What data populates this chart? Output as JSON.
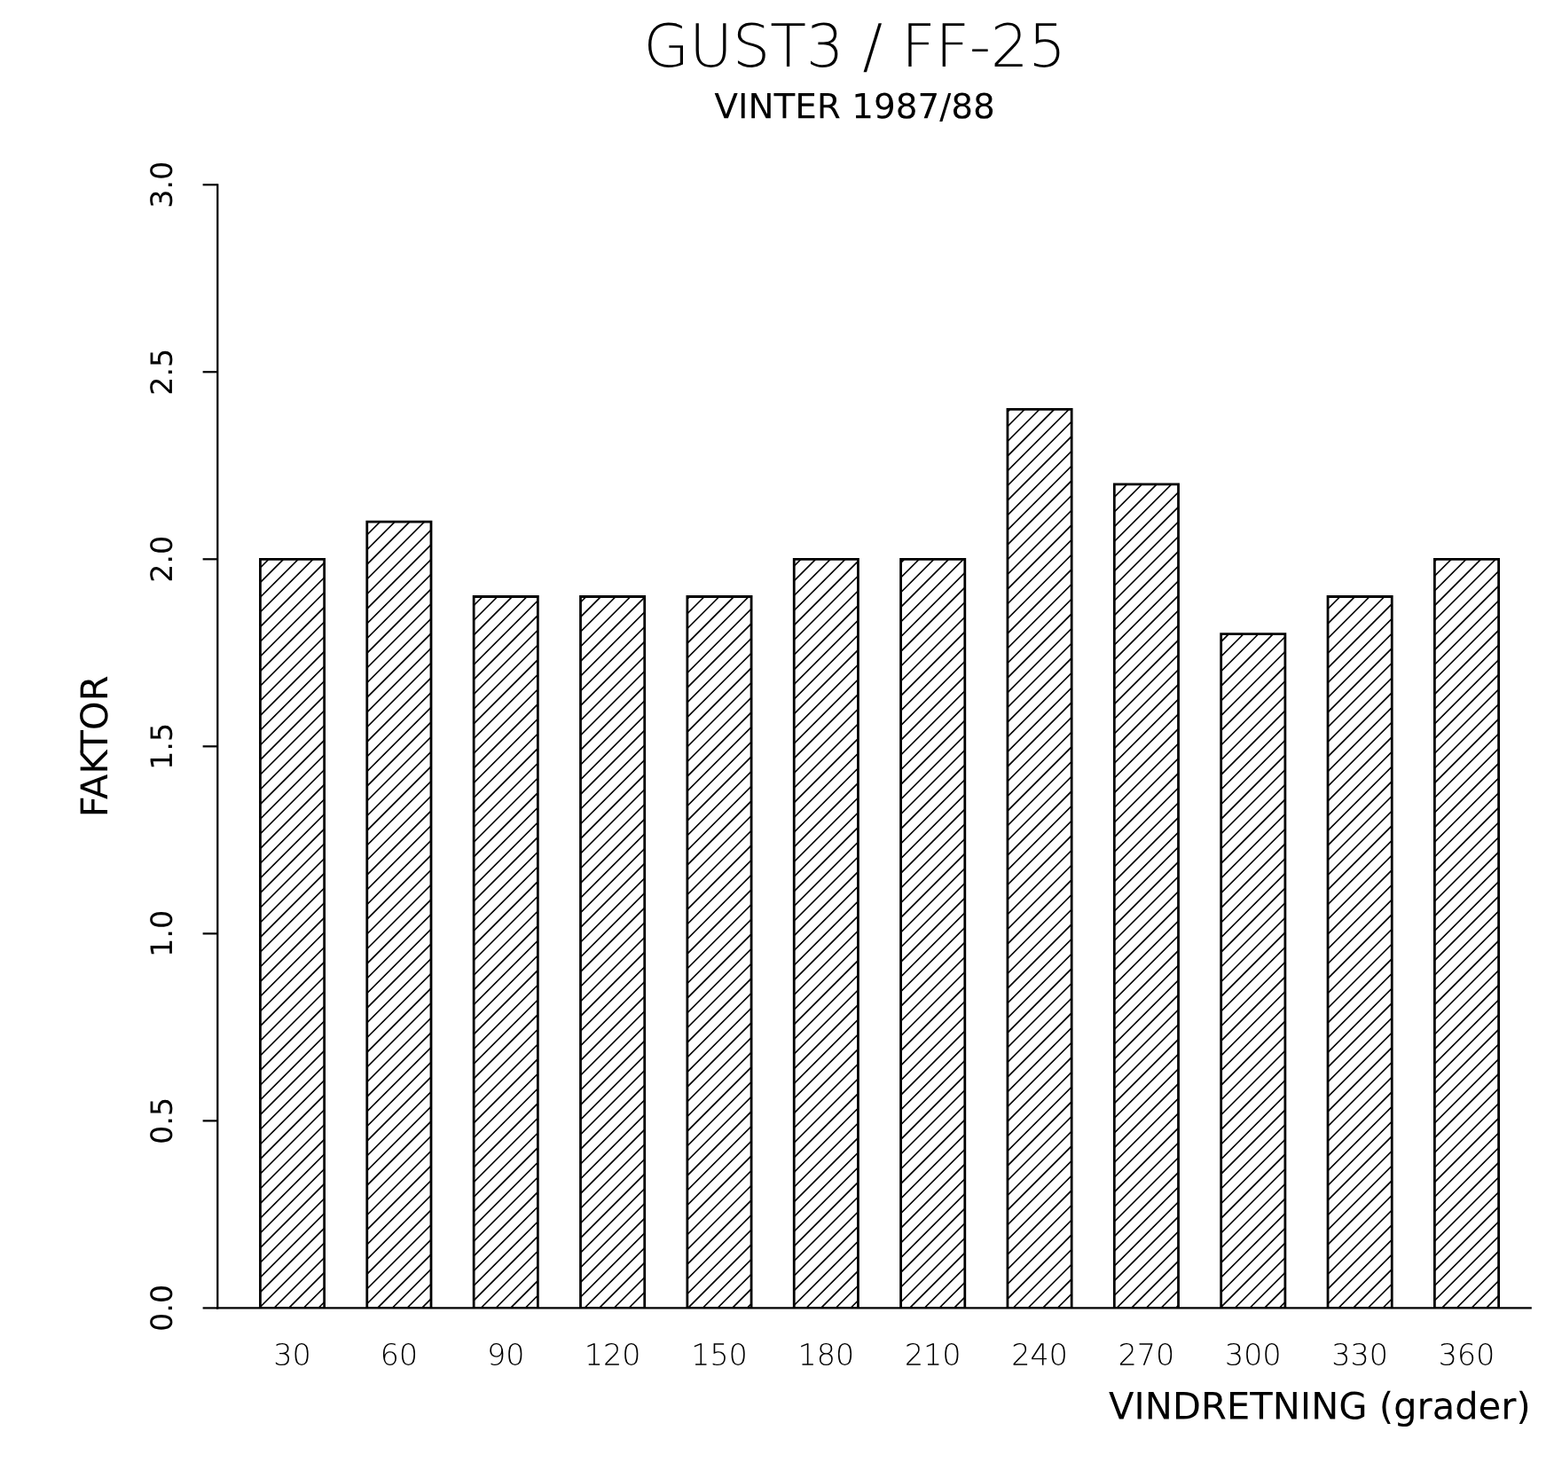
{
  "chart_data": {
    "type": "bar",
    "title": "GUST3 / FF-25",
    "subtitle": "VINTER 1987/88",
    "xlabel": "VINDRETNING (grader)",
    "ylabel": "FAKTOR",
    "categories": [
      "30",
      "60",
      "90",
      "120",
      "150",
      "180",
      "210",
      "240",
      "270",
      "300",
      "330",
      "360"
    ],
    "values": [
      2.0,
      2.1,
      1.9,
      1.9,
      1.9,
      2.0,
      2.0,
      2.4,
      2.2,
      1.8,
      1.9,
      2.0
    ],
    "color": "#000000",
    "ylim": [
      0,
      3
    ],
    "yticks": [
      {
        "value": 0,
        "label": "0.0"
      },
      0.5,
      {
        "value": 1,
        "label": "1.0"
      },
      1.5,
      {
        "value": 2,
        "label": "2.0"
      },
      2.5,
      {
        "value": 3,
        "label": "3.0"
      }
    ],
    "grid": false,
    "legend": false
  }
}
